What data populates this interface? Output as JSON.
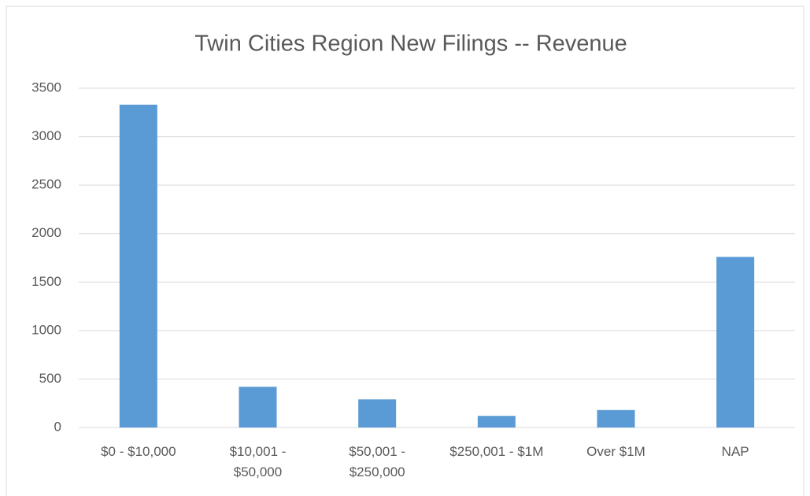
{
  "chart_data": {
    "type": "bar",
    "title": "Twin Cities Region New Filings -- Revenue",
    "categories": [
      "$0 - $10,000",
      "$10,001 - $50,000",
      "$50,001 - $250,000",
      "$250,001 - $1M",
      "Over $1M",
      "NAP"
    ],
    "values": [
      3330,
      420,
      290,
      120,
      180,
      1760
    ],
    "color": "#5b9bd5",
    "ylim": [
      0,
      3500
    ],
    "yticks": [
      0,
      500,
      1000,
      1500,
      2000,
      2500,
      3000,
      3500
    ],
    "grid": true
  }
}
